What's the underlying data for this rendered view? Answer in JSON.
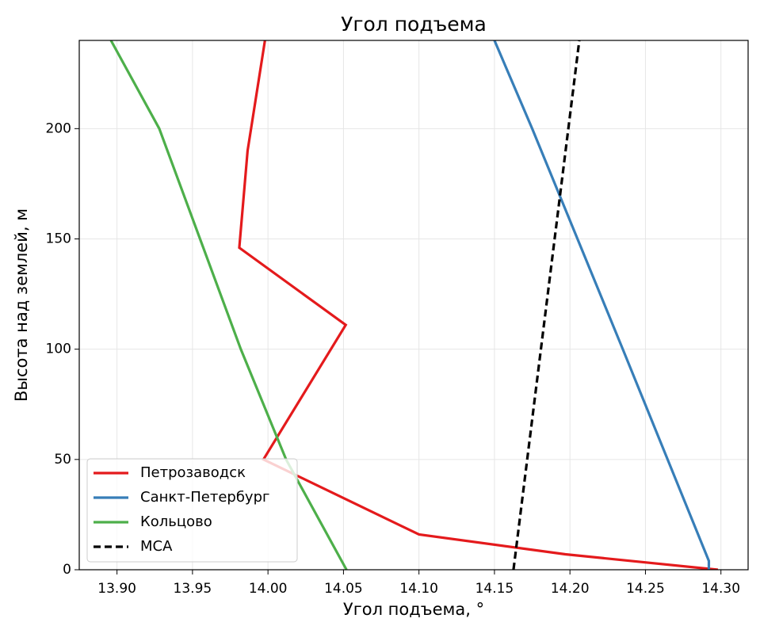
{
  "chart_data": {
    "type": "line",
    "title": "Угол подъема",
    "xlabel": "Угол подъема, °",
    "ylabel": "Высота над землей, м",
    "xlim": [
      13.875,
      14.318
    ],
    "ylim": [
      0,
      240
    ],
    "xticks": [
      {
        "value": 13.9,
        "label": "13.90"
      },
      {
        "value": 13.95,
        "label": "13.95"
      },
      {
        "value": 14.0,
        "label": "14.00"
      },
      {
        "value": 14.05,
        "label": "14.05"
      },
      {
        "value": 14.1,
        "label": "14.10"
      },
      {
        "value": 14.15,
        "label": "14.15"
      },
      {
        "value": 14.2,
        "label": "14.20"
      },
      {
        "value": 14.25,
        "label": "14.25"
      },
      {
        "value": 14.3,
        "label": "14.30"
      }
    ],
    "yticks": [
      0,
      50,
      100,
      150,
      200
    ],
    "grid": true,
    "legend": "lower left",
    "series": [
      {
        "name": "Петрозаводск",
        "color": "#e41a1c",
        "dash": false,
        "x": [
          14.298,
          14.197,
          14.1,
          13.997,
          14.0515,
          13.981,
          13.9865,
          13.998
        ],
        "values": [
          0,
          7,
          16,
          50,
          111,
          146,
          190,
          240
        ]
      },
      {
        "name": "Санкт-Петербург",
        "color": "#377eb8",
        "dash": false,
        "x": [
          14.292,
          14.292,
          14.235,
          14.175,
          14.15
        ],
        "values": [
          0,
          4,
          100,
          200,
          240
        ]
      },
      {
        "name": "Кольцово",
        "color": "#4daf4a",
        "dash": false,
        "x": [
          14.052,
          14.012,
          13.982,
          13.928,
          13.896
        ],
        "values": [
          0,
          50,
          100,
          200,
          240
        ]
      },
      {
        "name": "МСА",
        "color": "#000000",
        "dash": true,
        "x": [
          14.1626,
          14.2062
        ],
        "values": [
          0,
          240
        ]
      }
    ]
  }
}
